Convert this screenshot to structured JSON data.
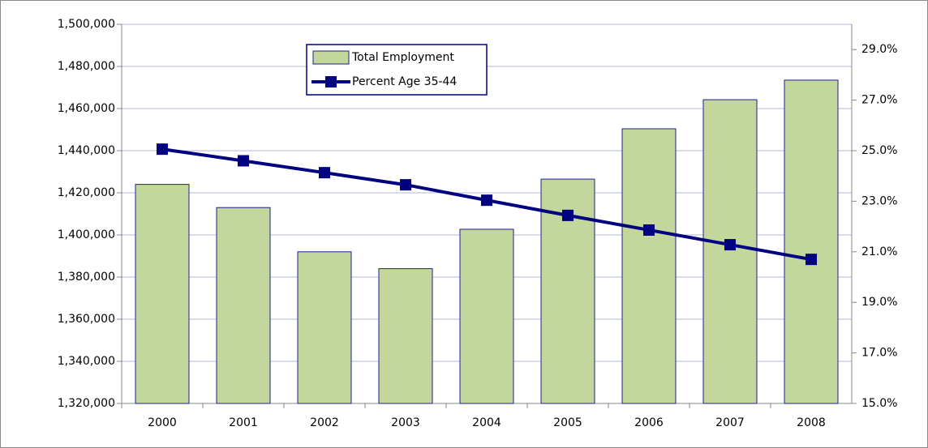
{
  "chart_data": {
    "type": "combo",
    "categories": [
      "2000",
      "2001",
      "2002",
      "2003",
      "2004",
      "2005",
      "2006",
      "2007",
      "2008"
    ],
    "series": [
      {
        "name": "Total Employment",
        "type": "bar",
        "color": "#c3d69b",
        "values": [
          1424000,
          1413000,
          1392000,
          1384000,
          1402700,
          1426500,
          1450400,
          1464200,
          1473500
        ]
      },
      {
        "name": "Percent Age 35-44",
        "type": "line",
        "axis": "y2",
        "color": "#000080",
        "values": [
          25.06,
          24.6,
          24.13,
          23.65,
          23.04,
          22.44,
          21.86,
          21.28,
          20.7
        ]
      }
    ],
    "ylim": [
      1320000,
      1500000
    ],
    "yticks": [
      {
        "value": 1320000,
        "label": "1,320,000"
      },
      {
        "value": 1340000,
        "label": "1,340,000"
      },
      {
        "value": 1360000,
        "label": "1,360,000"
      },
      {
        "value": 1380000,
        "label": "1,380,000"
      },
      {
        "value": 1400000,
        "label": "1,400,000"
      },
      {
        "value": 1420000,
        "label": "1,420,000"
      },
      {
        "value": 1440000,
        "label": "1,440,000"
      },
      {
        "value": 1460000,
        "label": "1,460,000"
      },
      {
        "value": 1480000,
        "label": "1,480,000"
      },
      {
        "value": 1500000,
        "label": "1,500,000"
      }
    ],
    "y2lim": [
      15,
      30
    ],
    "y2ticks": [
      {
        "value": 15,
        "label": "15.0%"
      },
      {
        "value": 17,
        "label": "17.0%"
      },
      {
        "value": 19,
        "label": "19.0%"
      },
      {
        "value": 21,
        "label": "21.0%"
      },
      {
        "value": 23,
        "label": "23.0%"
      },
      {
        "value": 25,
        "label": "25.0%"
      },
      {
        "value": 27,
        "label": "27.0%"
      },
      {
        "value": 29,
        "label": "29.0%"
      }
    ],
    "grid": true
  }
}
